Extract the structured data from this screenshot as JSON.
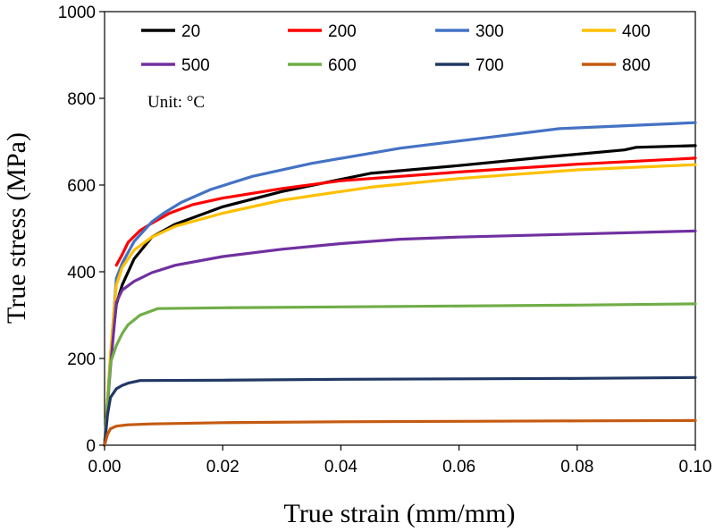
{
  "chart_data": {
    "type": "line",
    "title": "",
    "xlabel": "True strain (mm/mm)",
    "ylabel": "True stress (MPa)",
    "xlim": [
      0,
      0.1
    ],
    "ylim": [
      0,
      1000
    ],
    "xticks": [
      0,
      0.02,
      0.04,
      0.06,
      0.08,
      0.1
    ],
    "xtick_labels": [
      "0.00",
      "0.02",
      "0.04",
      "0.06",
      "0.08",
      "0.10"
    ],
    "yticks": [
      0,
      200,
      400,
      600,
      800,
      1000
    ],
    "ytick_labels": [
      "0",
      "200",
      "400",
      "600",
      "800",
      "1000"
    ],
    "grid": false,
    "legend_position": "top",
    "annotation": "Unit: °C",
    "series": [
      {
        "name": "20",
        "color": "#000000",
        "x": [
          0,
          0.001,
          0.002,
          0.003,
          0.005,
          0.008,
          0.012,
          0.02,
          0.03,
          0.045,
          0.06,
          0.075,
          0.088,
          0.09,
          0.1
        ],
        "y": [
          0,
          200,
          325,
          370,
          430,
          480,
          510,
          550,
          585,
          627,
          645,
          665,
          681,
          687,
          691
        ]
      },
      {
        "name": "200",
        "color": "#ff0000",
        "x": [
          0.002,
          0.003,
          0.004,
          0.006,
          0.008,
          0.011,
          0.015,
          0.02,
          0.03,
          0.04,
          0.06,
          0.08,
          0.1
        ],
        "y": [
          415,
          440,
          468,
          495,
          512,
          535,
          555,
          570,
          592,
          610,
          630,
          648,
          662
        ]
      },
      {
        "name": "300",
        "color": "#4472c4",
        "x": [
          0,
          0.001,
          0.002,
          0.003,
          0.005,
          0.008,
          0.01,
          0.013,
          0.018,
          0.025,
          0.035,
          0.05,
          0.065,
          0.077,
          0.09,
          0.1
        ],
        "y": [
          0,
          200,
          385,
          420,
          470,
          515,
          535,
          560,
          590,
          620,
          650,
          685,
          710,
          730,
          738,
          744
        ]
      },
      {
        "name": "400",
        "color": "#ffc000",
        "x": [
          0,
          0.001,
          0.002,
          0.003,
          0.005,
          0.008,
          0.012,
          0.02,
          0.03,
          0.045,
          0.06,
          0.08,
          0.1
        ],
        "y": [
          0,
          210,
          370,
          410,
          450,
          480,
          505,
          535,
          565,
          595,
          615,
          635,
          647
        ]
      },
      {
        "name": "500",
        "color": "#7030a0",
        "x": [
          0,
          0.001,
          0.002,
          0.003,
          0.005,
          0.008,
          0.012,
          0.02,
          0.03,
          0.04,
          0.05,
          0.06,
          0.08,
          0.1
        ],
        "y": [
          0,
          180,
          330,
          358,
          378,
          398,
          415,
          435,
          452,
          465,
          475,
          480,
          487,
          494
        ]
      },
      {
        "name": "600",
        "color": "#70ad47",
        "x": [
          0,
          0.001,
          0.002,
          0.003,
          0.004,
          0.006,
          0.009,
          0.02,
          0.04,
          0.06,
          0.08,
          0.1
        ],
        "y": [
          0,
          190,
          230,
          258,
          278,
          300,
          315,
          317,
          319,
          321,
          323,
          326
        ]
      },
      {
        "name": "700",
        "color": "#203864",
        "x": [
          0,
          0.0005,
          0.001,
          0.002,
          0.003,
          0.004,
          0.006,
          0.02,
          0.04,
          0.06,
          0.08,
          0.1
        ],
        "y": [
          0,
          70,
          110,
          130,
          138,
          143,
          149,
          150,
          152,
          153,
          154,
          156
        ]
      },
      {
        "name": "800",
        "color": "#c55a11",
        "x": [
          0,
          0.0005,
          0.001,
          0.002,
          0.004,
          0.008,
          0.02,
          0.04,
          0.06,
          0.08,
          0.1
        ],
        "y": [
          0,
          25,
          38,
          44,
          47,
          49,
          52,
          54,
          55,
          56,
          57
        ]
      }
    ]
  }
}
